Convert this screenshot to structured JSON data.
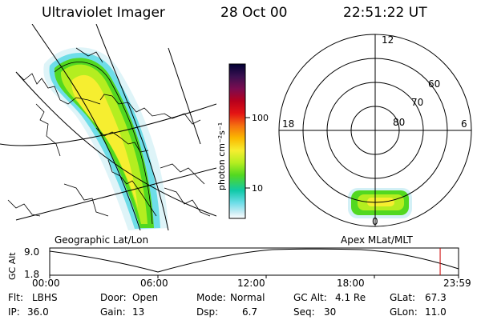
{
  "header": {
    "instrument": "Ultraviolet Imager",
    "date": "28 Oct 00",
    "time": "22:51:22 UT"
  },
  "colorbar": {
    "unit_label": "photon cm⁻²s⁻¹",
    "ticks": [
      "100",
      "10"
    ],
    "colors": [
      "#000033",
      "#3a1050",
      "#7a0c50",
      "#b8001c",
      "#e41414",
      "#f57010",
      "#fbb800",
      "#f6ee30",
      "#b4ee20",
      "#52d820",
      "#10c9a8",
      "#6edde8",
      "#c8ecf4",
      "#ffffff"
    ]
  },
  "panels": {
    "left_caption": "Geographic Lat/Lon",
    "right_caption": "Apex MLat/MLT"
  },
  "polar": {
    "mlt_labels": {
      "top": "12",
      "left": "18",
      "right": "6",
      "bottom": "0"
    },
    "lat_labels": [
      "60",
      "70",
      "80"
    ]
  },
  "altitude_plot": {
    "axis_label": "GC Alt",
    "y_max": "9.0",
    "y_min": "1.8",
    "time_ticks": [
      "00:00",
      "06:00",
      "12:00",
      "18:00",
      "23:59"
    ],
    "current_time_fraction": 0.955,
    "marker_color": "#cc0000"
  },
  "status": {
    "flt_label": "Flt:",
    "flt_value": "LBHS",
    "door_label": "Door:",
    "door_value": "Open",
    "mode_label": "Mode:",
    "mode_value": "Normal",
    "gcalt_label": "GC Alt:",
    "gcalt_value": "4.1 Re",
    "glat_label": "GLat:",
    "glat_value": "67.3",
    "ip_label": "IP:",
    "ip_value": "36.0",
    "gain_label": "Gain:",
    "gain_value": "13",
    "dsp_label": "Dsp:",
    "dsp_value": "6.7",
    "seq_label": "Seq:",
    "seq_value": "30",
    "glon_label": "GLon:",
    "glon_value": "11.0"
  }
}
